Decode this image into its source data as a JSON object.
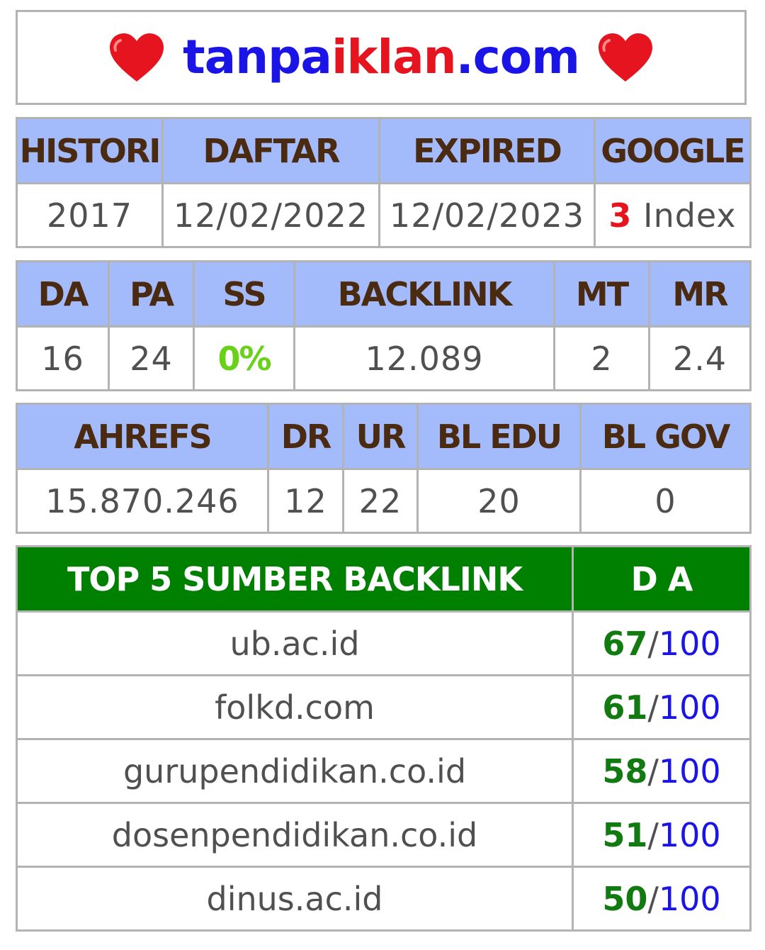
{
  "header": {
    "title_part1": "tanpa",
    "title_part2": "iklan",
    "title_part3": ".com",
    "left_icon": "heart-icon",
    "right_icon": "heart-icon",
    "colors": {
      "blue": "#1a14e6",
      "red": "#e5141e"
    }
  },
  "table1": {
    "headers": [
      "HISTORI",
      "DAFTAR",
      "EXPIRED",
      "GOOGLE"
    ],
    "values": {
      "histori": "2017",
      "daftar": "12/02/2022",
      "expired": "12/02/2023",
      "google_count": "3",
      "google_label": "Index"
    }
  },
  "table2": {
    "headers": [
      "DA",
      "PA",
      "SS",
      "BACKLINK",
      "MT",
      "MR"
    ],
    "values": [
      "16",
      "24",
      "0%",
      "12.089",
      "2",
      "2.4"
    ]
  },
  "table3": {
    "headers": [
      "AHREFS",
      "DR",
      "UR",
      "BL EDU",
      "BL GOV"
    ],
    "values": [
      "15.870.246",
      "12",
      "22",
      "20",
      "0"
    ]
  },
  "top_backlinks": {
    "headers": [
      "TOP 5 SUMBER BACKLINK",
      "D A"
    ],
    "rows": [
      {
        "site": "ub.ac.id",
        "da": "67",
        "max": "100"
      },
      {
        "site": "folkd.com",
        "da": "61",
        "max": "100"
      },
      {
        "site": "gurupendidikan.co.id",
        "da": "58",
        "max": "100"
      },
      {
        "site": "dosenpendidikan.co.id",
        "da": "51",
        "max": "100"
      },
      {
        "site": "dinus.ac.id",
        "da": "50",
        "max": "100"
      }
    ],
    "separator": "/"
  }
}
